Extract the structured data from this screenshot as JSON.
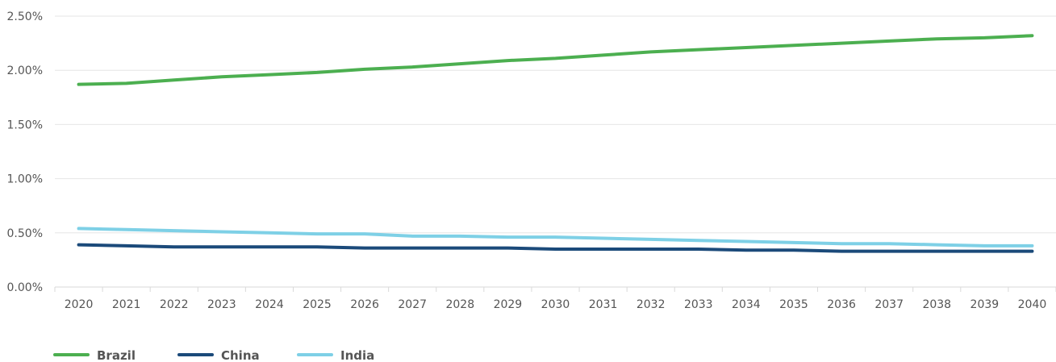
{
  "chart_data": {
    "type": "line",
    "x": [
      "2020",
      "2021",
      "2022",
      "2023",
      "2024",
      "2025",
      "2026",
      "2027",
      "2028",
      "2029",
      "2030",
      "2031",
      "2032",
      "2033",
      "2034",
      "2035",
      "2036",
      "2037",
      "2038",
      "2039",
      "2040"
    ],
    "ylim": [
      0,
      2.5
    ],
    "yticks": [
      {
        "value": 0,
        "label": "0.00%"
      },
      {
        "value": 0.5,
        "label": "0.50%"
      },
      {
        "value": 1.0,
        "label": "1.00%"
      },
      {
        "value": 1.5,
        "label": "1.50%"
      },
      {
        "value": 2.0,
        "label": "2.00%"
      },
      {
        "value": 2.5,
        "label": "2.50%"
      }
    ],
    "grid": true,
    "legend_position": "bottom-left",
    "series": [
      {
        "name": "Brazil",
        "color": "#4caf50",
        "values": [
          1.87,
          1.88,
          1.91,
          1.94,
          1.96,
          1.98,
          2.01,
          2.03,
          2.06,
          2.09,
          2.11,
          2.14,
          2.17,
          2.19,
          2.21,
          2.23,
          2.25,
          2.27,
          2.29,
          2.3,
          2.32
        ]
      },
      {
        "name": "China",
        "color": "#1b4a7a",
        "values": [
          0.39,
          0.38,
          0.37,
          0.37,
          0.37,
          0.37,
          0.36,
          0.36,
          0.36,
          0.36,
          0.35,
          0.35,
          0.35,
          0.35,
          0.34,
          0.34,
          0.33,
          0.33,
          0.33,
          0.33,
          0.33
        ]
      },
      {
        "name": "India",
        "color": "#7ed0e6",
        "values": [
          0.54,
          0.53,
          0.52,
          0.51,
          0.5,
          0.49,
          0.49,
          0.47,
          0.47,
          0.46,
          0.46,
          0.45,
          0.44,
          0.43,
          0.42,
          0.41,
          0.4,
          0.4,
          0.39,
          0.38,
          0.38
        ]
      }
    ]
  }
}
